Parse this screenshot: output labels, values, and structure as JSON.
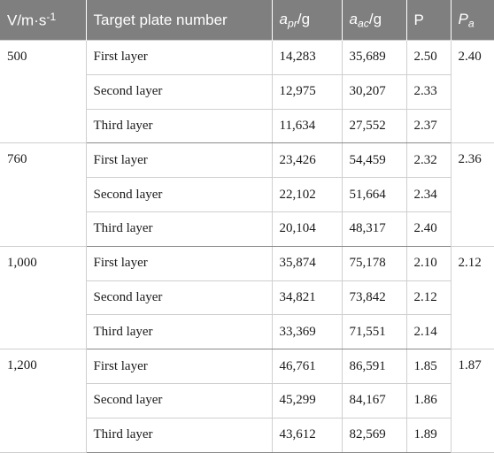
{
  "headers": {
    "v": {
      "base": "V/m·s",
      "sup": "-1"
    },
    "target": "Target plate number",
    "apr": {
      "sym": "a",
      "sub": "pr",
      "unit": "/g"
    },
    "aac": {
      "sym": "a",
      "sub": "ac",
      "unit": "/g"
    },
    "p": "P",
    "pa": {
      "sym": "P",
      "sub": "a"
    }
  },
  "groups": [
    {
      "velocity": "500",
      "pa": "2.40",
      "rows": [
        {
          "layer": "First layer",
          "apr": "14,283",
          "aac": "35,689",
          "p": "2.50"
        },
        {
          "layer": "Second layer",
          "apr": "12,975",
          "aac": "30,207",
          "p": "2.33"
        },
        {
          "layer": "Third layer",
          "apr": "11,634",
          "aac": "27,552",
          "p": "2.37"
        }
      ]
    },
    {
      "velocity": "760",
      "pa": "2.36",
      "rows": [
        {
          "layer": "First layer",
          "apr": "23,426",
          "aac": "54,459",
          "p": "2.32"
        },
        {
          "layer": "Second layer",
          "apr": "22,102",
          "aac": "51,664",
          "p": "2.34"
        },
        {
          "layer": "Third layer",
          "apr": "20,104",
          "aac": "48,317",
          "p": "2.40"
        }
      ]
    },
    {
      "velocity": "1,000",
      "pa": "2.12",
      "rows": [
        {
          "layer": "First layer",
          "apr": "35,874",
          "aac": "75,178",
          "p": "2.10"
        },
        {
          "layer": "Second layer",
          "apr": "34,821",
          "aac": "73,842",
          "p": "2.12"
        },
        {
          "layer": "Third layer",
          "apr": "33,369",
          "aac": "71,551",
          "p": "2.14"
        }
      ]
    },
    {
      "velocity": "1,200",
      "pa": "1.87",
      "rows": [
        {
          "layer": "First layer",
          "apr": "46,761",
          "aac": "86,591",
          "p": "1.85"
        },
        {
          "layer": "Second layer",
          "apr": "45,299",
          "aac": "84,167",
          "p": "1.86"
        },
        {
          "layer": "Third layer",
          "apr": "43,612",
          "aac": "82,569",
          "p": "1.89"
        }
      ]
    }
  ]
}
